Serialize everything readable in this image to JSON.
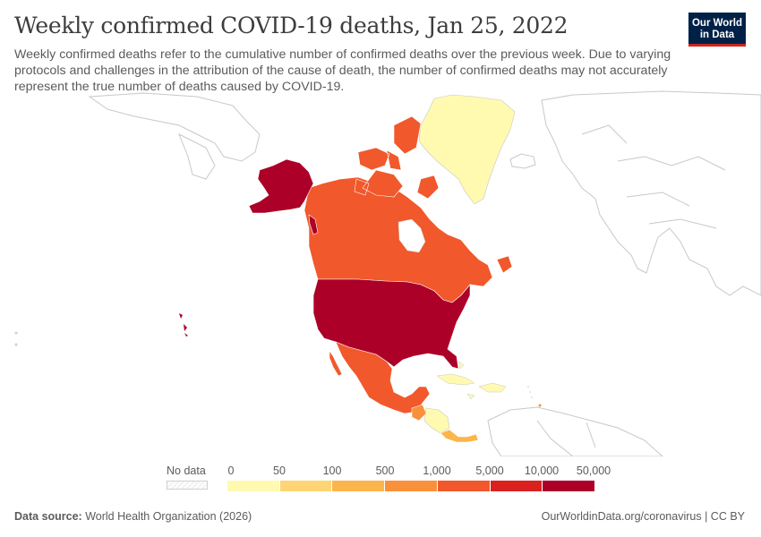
{
  "title": "Weekly confirmed COVID-19 deaths, Jan 25, 2022",
  "subtitle": "Weekly confirmed deaths refer to the cumulative number of confirmed deaths over the previous week. Due to varying protocols and challenges in the attribution of the cause of death, the number of confirmed deaths may not accurately represent the true number of deaths caused by COVID-19.",
  "logo": {
    "line1": "Our World",
    "line2": "in Data"
  },
  "legend": {
    "no_data_label": "No data",
    "ticks": [
      "0",
      "50",
      "100",
      "500",
      "1,000",
      "5,000",
      "10,000",
      "50,000"
    ],
    "colors": [
      "#fffab0",
      "#fdd575",
      "#fbb54a",
      "#f9903a",
      "#f1582c",
      "#db2120",
      "#ad0029"
    ]
  },
  "regions": [
    {
      "name": "United States",
      "color": "#ad0029"
    },
    {
      "name": "Canada",
      "color": "#f1582c"
    },
    {
      "name": "Mexico",
      "color": "#f1582c"
    },
    {
      "name": "Greenland",
      "color": "#fffab0"
    },
    {
      "name": "Guatemala",
      "color": "#f9903a"
    },
    {
      "name": "Central America",
      "color": "#fffab0"
    },
    {
      "name": "Costa Rica / Panama",
      "color": "#fbb54a"
    },
    {
      "name": "Caribbean",
      "color": "#fffab0"
    }
  ],
  "footer": {
    "source_label": "Data source:",
    "source_text": "World Health Organization (2026)",
    "url": "OurWorldinData.org/coronavirus | CC BY"
  },
  "colors": {
    "background": "#ffffff",
    "outline": "#c8c8c8",
    "title": "#3d3d3d"
  }
}
